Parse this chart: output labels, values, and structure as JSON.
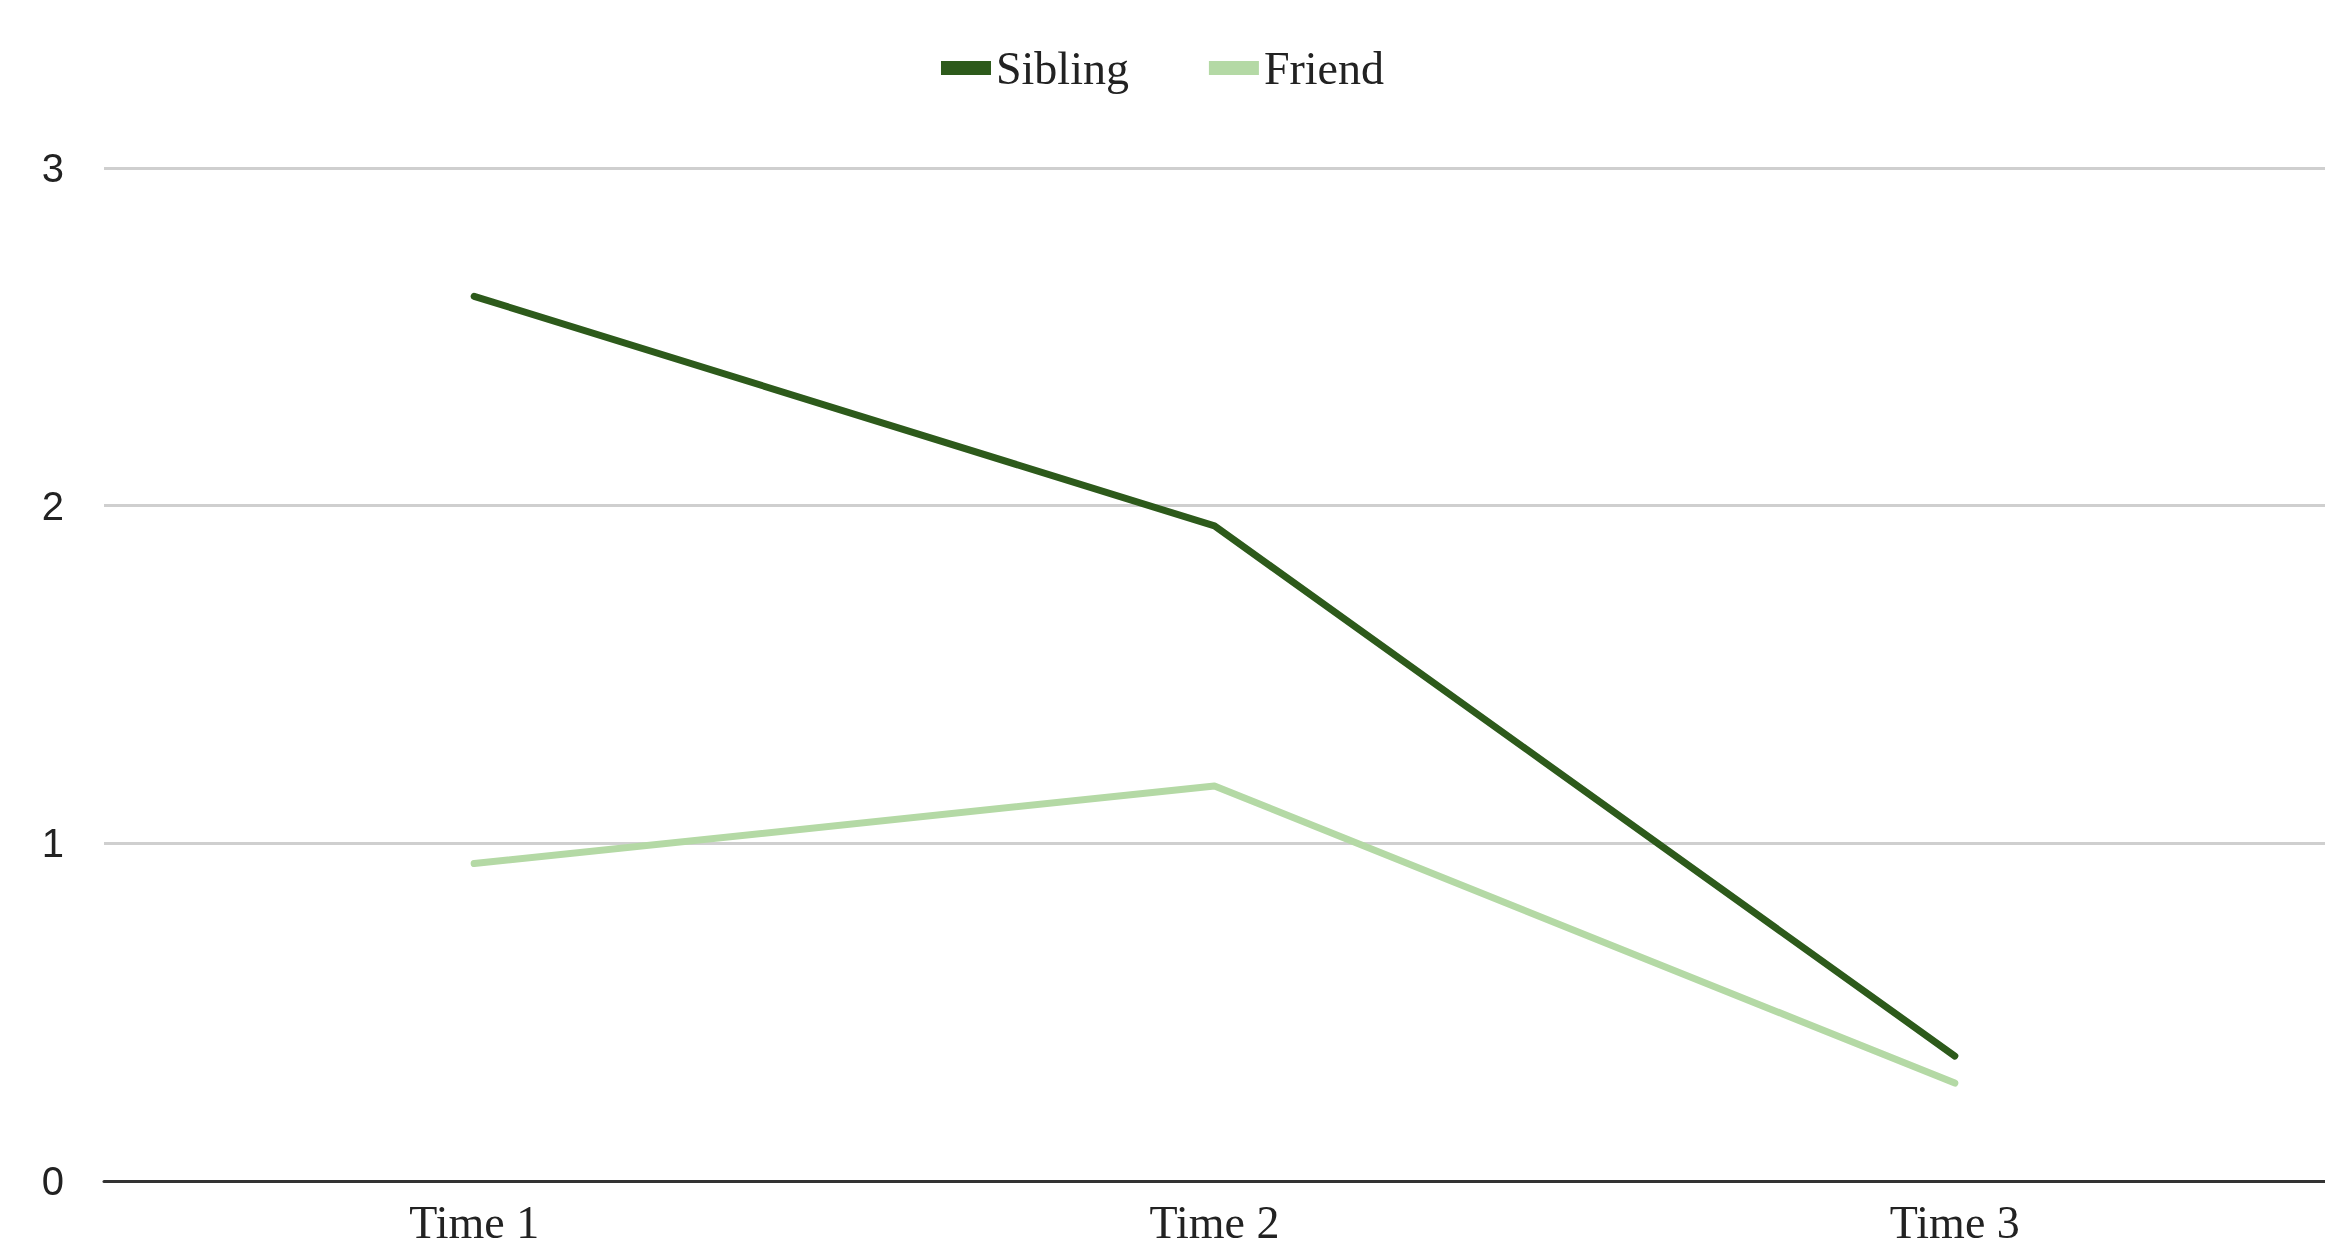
{
  "chart_data": {
    "type": "line",
    "categories": [
      "Time 1",
      "Time 2",
      "Time 3"
    ],
    "series": [
      {
        "name": "Sibling",
        "color": "#2d5a1b",
        "values": [
          2.62,
          1.94,
          0.37
        ]
      },
      {
        "name": "Friend",
        "color": "#b4d9a5",
        "values": [
          0.94,
          1.17,
          0.29
        ]
      }
    ],
    "ylim": [
      0,
      3
    ],
    "yticks": [
      0,
      1,
      2,
      3
    ],
    "grid": "y",
    "legend": "top",
    "marker": "none",
    "line_style": "solid"
  }
}
